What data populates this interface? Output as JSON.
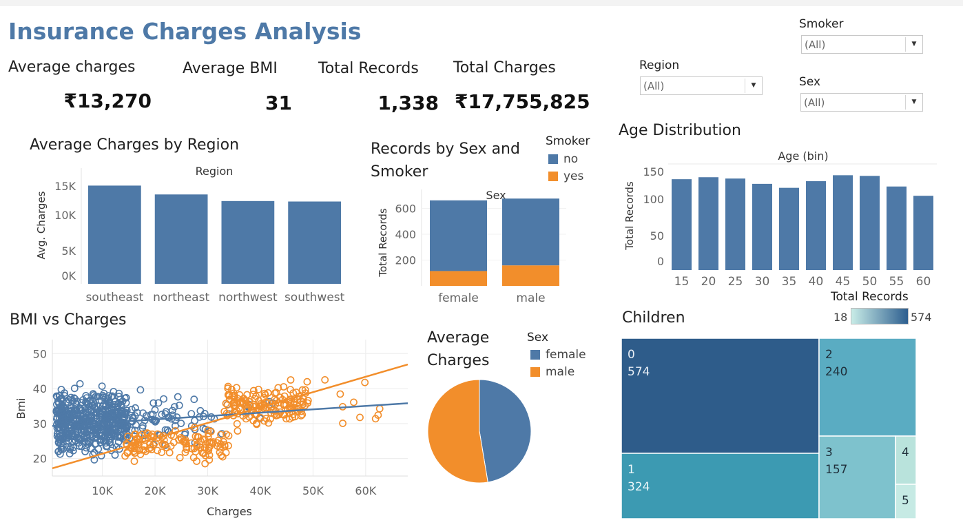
{
  "page": {
    "title": "Insurance Charges Analysis"
  },
  "kpis": [
    {
      "label": "Average charges",
      "value": "₹13,270"
    },
    {
      "label": "Average BMI",
      "value": "31"
    },
    {
      "label": "Total Records",
      "value": "1,338"
    },
    {
      "label": "Total Charges",
      "value": "₹17,755,825"
    }
  ],
  "filters": {
    "smoker": {
      "label": "Smoker",
      "value": "(All)"
    },
    "region": {
      "label": "Region",
      "value": "(All)"
    },
    "sex": {
      "label": "Sex",
      "value": "(All)"
    }
  },
  "colors": {
    "blue": "#4e79a7",
    "orange": "#f28e2b",
    "grid": "#ececec"
  },
  "chart_data": [
    {
      "type": "bar",
      "title": "Average Charges by Region",
      "header": "Region",
      "ylabel": "Avg. Charges",
      "categories": [
        "southeast",
        "northeast",
        "northwest",
        "southwest"
      ],
      "values": [
        14735,
        13406,
        12418,
        12347
      ],
      "yticks": [
        "15K",
        "10K",
        "5K",
        "0K"
      ],
      "ylim": [
        0,
        15500
      ]
    },
    {
      "type": "bar",
      "stacked": true,
      "title": "Records by Sex and Smoker",
      "header": "Sex",
      "ylabel": "Total Records",
      "categories": [
        "female",
        "male"
      ],
      "series": [
        {
          "name": "no",
          "values": [
            547,
            517
          ]
        },
        {
          "name": "yes",
          "values": [
            115,
            159
          ]
        }
      ],
      "yticks": [
        "600",
        "400",
        "200"
      ],
      "ylim": [
        0,
        720
      ],
      "legend_title": "Smoker"
    },
    {
      "type": "bar",
      "title": "Age Distribution",
      "header": "Age (bin)",
      "ylabel": "Total Records",
      "xlabel": "Total Records",
      "categories": [
        "15",
        "20",
        "25",
        "30",
        "35",
        "40",
        "45",
        "50",
        "55",
        "60"
      ],
      "values": [
        137,
        140,
        138,
        130,
        124,
        134,
        143,
        142,
        126,
        112
      ],
      "yticks": [
        "150",
        "100",
        "50",
        "0"
      ],
      "ylim": [
        0,
        160
      ]
    },
    {
      "type": "scatter",
      "title": "BMI vs Charges",
      "xlabel": "Charges",
      "ylabel": "Bmi",
      "xticks": [
        "10K",
        "20K",
        "30K",
        "40K",
        "50K",
        "60K"
      ],
      "yticks": [
        "50",
        "40",
        "30",
        "20"
      ],
      "xlim": [
        500,
        68000
      ],
      "ylim": [
        15,
        54
      ],
      "series": [
        {
          "name": "female",
          "trend": [
            [
              500,
              29.3
            ],
            [
              68000,
              35.8
            ]
          ]
        },
        {
          "name": "male",
          "trend": [
            [
              500,
              17.2
            ],
            [
              68000,
              46.9
            ]
          ]
        }
      ]
    },
    {
      "type": "pie",
      "title": "Average Charges",
      "legend_title": "Sex",
      "series": [
        {
          "name": "female",
          "value": 12570
        },
        {
          "name": "male",
          "value": 13957
        }
      ]
    },
    {
      "type": "treemap",
      "title": "Children",
      "legend_title": "Total Records",
      "legend_min": "18",
      "legend_max": "574",
      "cells": [
        {
          "label": "0",
          "value": "574"
        },
        {
          "label": "1",
          "value": "324"
        },
        {
          "label": "2",
          "value": "240"
        },
        {
          "label": "3",
          "value": "157"
        },
        {
          "label": "4",
          "value": ""
        },
        {
          "label": "5",
          "value": ""
        }
      ]
    }
  ]
}
